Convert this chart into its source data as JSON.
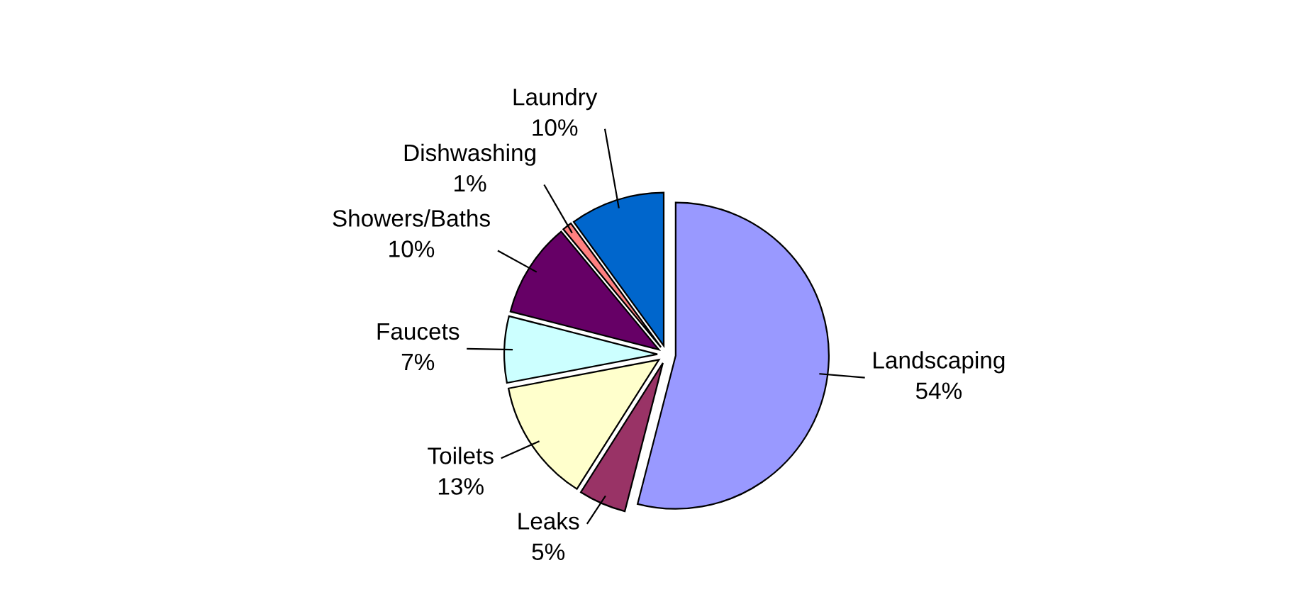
{
  "chart_data": {
    "type": "pie",
    "categories": [
      "Landscaping",
      "Leaks",
      "Toilets",
      "Faucets",
      "Showers/Baths",
      "Dishwashing",
      "Laundry"
    ],
    "values": [
      54,
      5,
      13,
      7,
      10,
      1,
      10
    ],
    "value_labels": [
      "54%",
      "5%",
      "13%",
      "7%",
      "10%",
      "1%",
      "10%"
    ],
    "colors": [
      "#9999ff",
      "#993366",
      "#ffffcc",
      "#ccffff",
      "#660066",
      "#ff8080",
      "#0066cc"
    ]
  }
}
